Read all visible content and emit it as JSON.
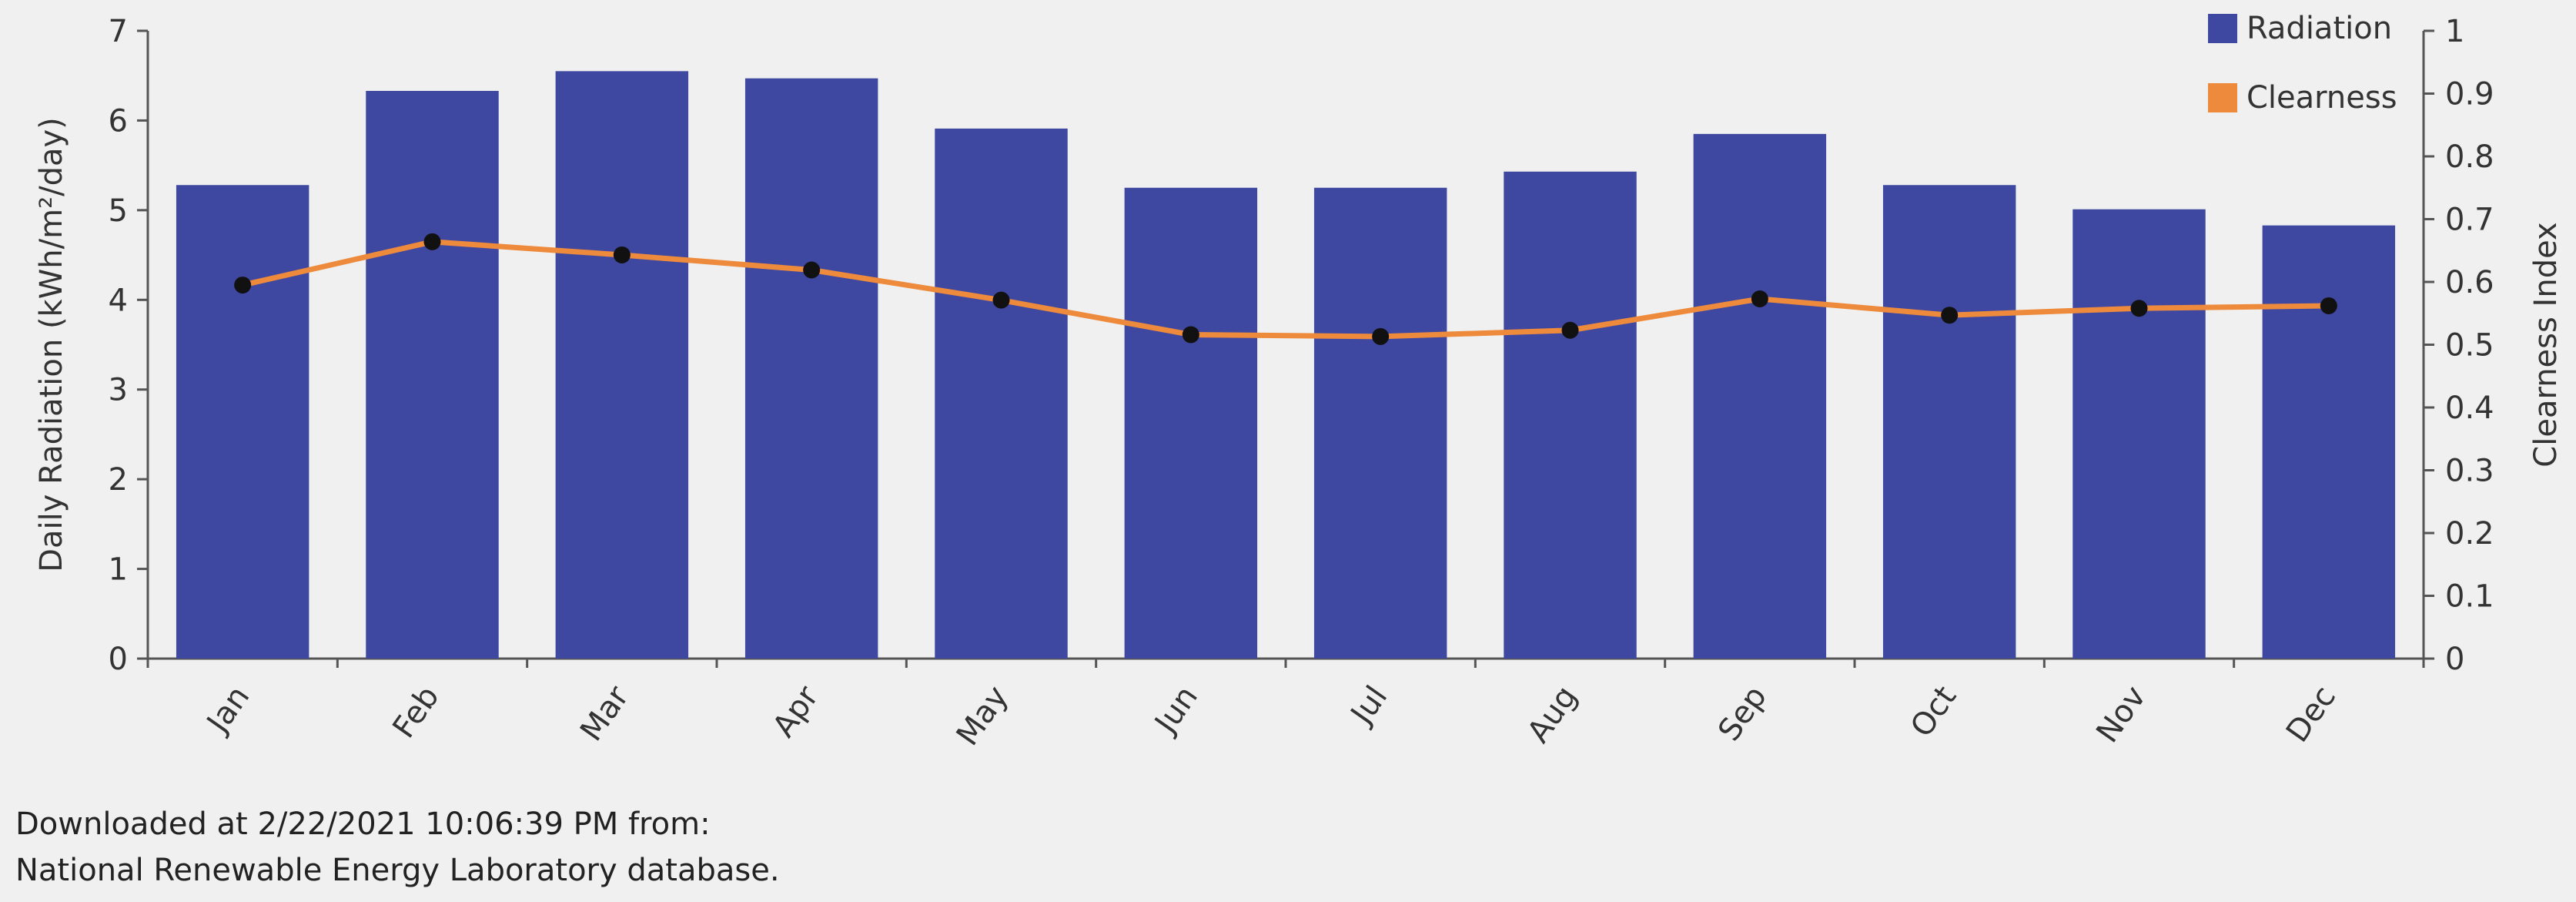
{
  "chart_data": {
    "type": "bar",
    "categories": [
      "Jan",
      "Feb",
      "Mar",
      "Apr",
      "May",
      "Jun",
      "Jul",
      "Aug",
      "Sep",
      "Oct",
      "Nov",
      "Dec"
    ],
    "series": [
      {
        "name": "Radiation",
        "type": "bar",
        "axis": "left",
        "values": [
          5.28,
          6.33,
          6.55,
          6.47,
          5.91,
          5.25,
          5.25,
          5.43,
          5.85,
          5.28,
          5.01,
          4.83
        ],
        "color": "#3f48a0"
      },
      {
        "name": "Clearness",
        "type": "line",
        "axis": "right",
        "values": [
          0.595,
          0.664,
          0.643,
          0.619,
          0.571,
          0.516,
          0.513,
          0.523,
          0.573,
          0.547,
          0.558,
          0.562
        ],
        "color": "#ee8a3c",
        "marker_color": "#111111"
      }
    ],
    "ylabel": "Daily Radiation (kWh/m²/day)",
    "ylabel_right": "Clearness Index",
    "ylim": [
      0,
      7
    ],
    "ylim_right": [
      0,
      1
    ],
    "yticks": [
      "0",
      "1",
      "2",
      "3",
      "4",
      "5",
      "6",
      "7"
    ],
    "yticks_right": [
      "0",
      "0.1",
      "0.2",
      "0.3",
      "0.4",
      "0.5",
      "0.6",
      "0.7",
      "0.8",
      "0.9",
      "1"
    ],
    "legend": {
      "placement": "top-right",
      "entries": [
        "Radiation",
        "Clearness"
      ]
    },
    "grid": false
  },
  "footer": {
    "line1": "Downloaded at 2/22/2021 10:06:39 PM from:",
    "line2": "National Renewable Energy Laboratory database."
  }
}
